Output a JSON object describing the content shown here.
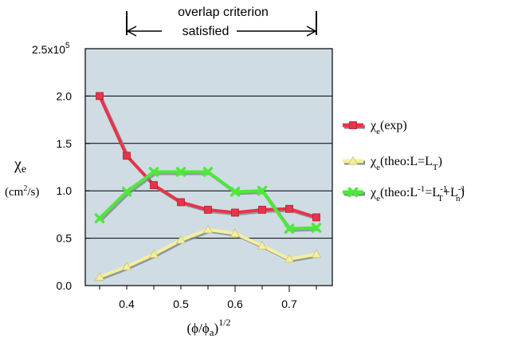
{
  "chart_data": {
    "type": "line",
    "title": "",
    "annotation": {
      "line1": "overlap criterion",
      "line2": "satisfied",
      "x_range": [
        0.4,
        0.75
      ]
    },
    "ylabel": {
      "main": "χ",
      "sub": "e",
      "unit_pre": "(cm",
      "unit_sup": "2",
      "unit_post": "/s)"
    },
    "xlabel": {
      "pre": "(ϕ/ϕ",
      "sub": "a",
      "post": ")",
      "sup": "1/2"
    },
    "xlim": [
      0.3,
      0.8
    ],
    "ylim": [
      0,
      2.5
    ],
    "x_ticks": [
      0.4,
      0.5,
      0.6,
      0.7
    ],
    "x_tick_labels": [
      "0.4",
      "0.5",
      "0.6",
      "0.7"
    ],
    "y_ticks": [
      0.0,
      0.5,
      1.0,
      1.5,
      2.0
    ],
    "y_tick_labels": [
      "0.0",
      "0.5",
      "1.0",
      "1.5",
      "2.0"
    ],
    "y_top_label": {
      "base": "2.5x10",
      "exp": "5"
    },
    "grid": "horizontal",
    "legend_position": "right",
    "series": [
      {
        "name": "χe(exp)",
        "label_parts": [
          [
            "χ",
            ""
          ],
          [
            "e",
            "sub"
          ],
          [
            "(exp)",
            ""
          ]
        ],
        "color": "#e8344a",
        "marker": "square",
        "x": [
          0.35,
          0.4,
          0.45,
          0.5,
          0.55,
          0.6,
          0.65,
          0.7,
          0.75
        ],
        "y": [
          2.0,
          1.37,
          1.06,
          0.88,
          0.8,
          0.77,
          0.8,
          0.81,
          0.72
        ]
      },
      {
        "name": "χe(theo:L=LT)",
        "label_parts": [
          [
            "χ",
            ""
          ],
          [
            "e",
            "sub"
          ],
          [
            "(theo:L=L",
            ""
          ],
          [
            "T",
            "sub"
          ],
          [
            ")",
            ""
          ]
        ],
        "color": "#f6ef9c",
        "marker": "triangle",
        "x": [
          0.35,
          0.4,
          0.45,
          0.5,
          0.55,
          0.6,
          0.65,
          0.7,
          0.75
        ],
        "y": [
          0.09,
          0.2,
          0.33,
          0.48,
          0.59,
          0.55,
          0.42,
          0.28,
          0.33
        ]
      },
      {
        "name": "χe(theo:L-1=LT-1+Ln-1)",
        "label_parts": [
          [
            "χ",
            ""
          ],
          [
            "e",
            "sub"
          ],
          [
            "(theo:L",
            ""
          ],
          [
            "-1",
            "sup"
          ],
          [
            "=L",
            ""
          ],
          [
            "-1",
            "sup"
          ],
          [
            "T",
            "subback"
          ],
          [
            "+L",
            ""
          ],
          [
            "-1",
            "sup"
          ],
          [
            "n",
            "subback"
          ],
          [
            ")",
            ""
          ]
        ],
        "color": "#4fe83a",
        "marker": "x",
        "x": [
          0.35,
          0.4,
          0.45,
          0.5,
          0.55,
          0.6,
          0.65,
          0.7,
          0.75
        ],
        "y": [
          0.71,
          0.99,
          1.2,
          1.2,
          1.2,
          0.99,
          1.0,
          0.6,
          0.61
        ]
      }
    ]
  }
}
